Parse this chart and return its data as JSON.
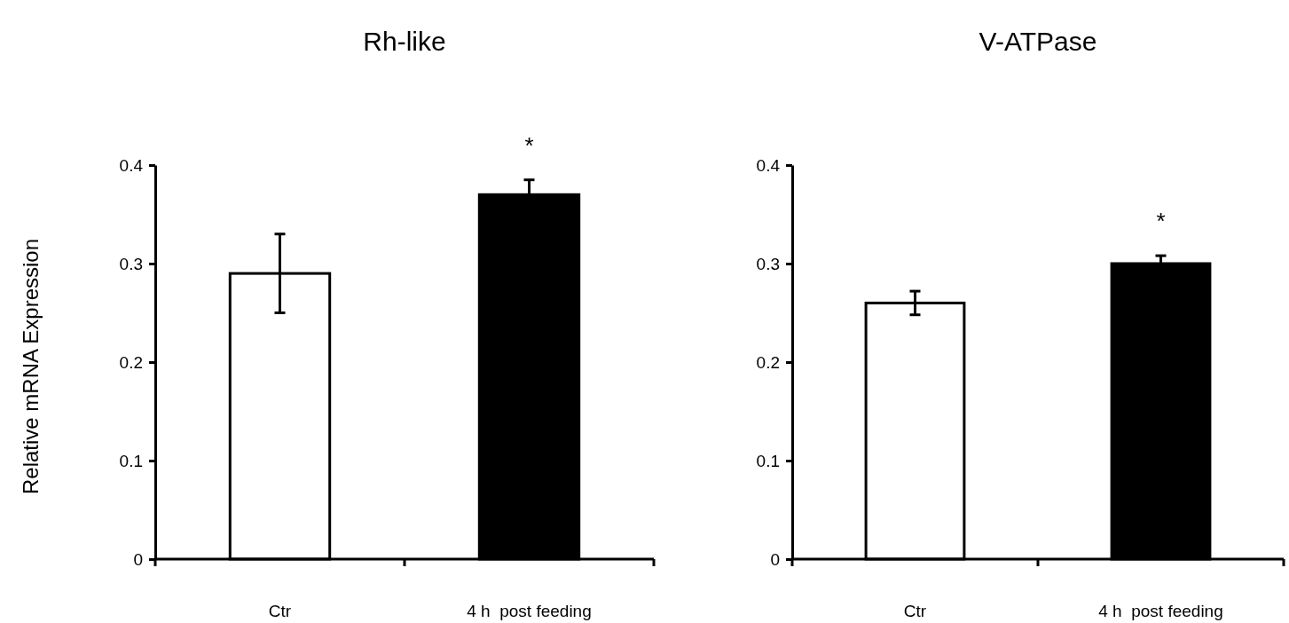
{
  "chart_data": [
    {
      "type": "bar",
      "title": "Rh-like",
      "ylabel": "Relative mRNA Expression",
      "categories": [
        "Ctr",
        "4 h  post feeding"
      ],
      "values": [
        0.29,
        0.37
      ],
      "colors": [
        "#ffffff",
        "#000000"
      ],
      "errors": [
        0.04,
        0.015
      ],
      "ylim": [
        0,
        0.4
      ],
      "yticks": [
        0,
        0.1,
        0.2,
        0.3,
        0.4
      ],
      "annotations": [
        "*"
      ]
    },
    {
      "type": "bar",
      "title": "V-ATPase",
      "categories": [
        "Ctr",
        "4 h  post feeding"
      ],
      "values": [
        0.26,
        0.3
      ],
      "colors": [
        "#ffffff",
        "#000000"
      ],
      "errors": [
        0.012,
        0.008
      ],
      "ylim": [
        0,
        0.4
      ],
      "yticks": [
        0,
        0.1,
        0.2,
        0.3,
        0.4
      ],
      "annotations": [
        "*"
      ]
    }
  ]
}
